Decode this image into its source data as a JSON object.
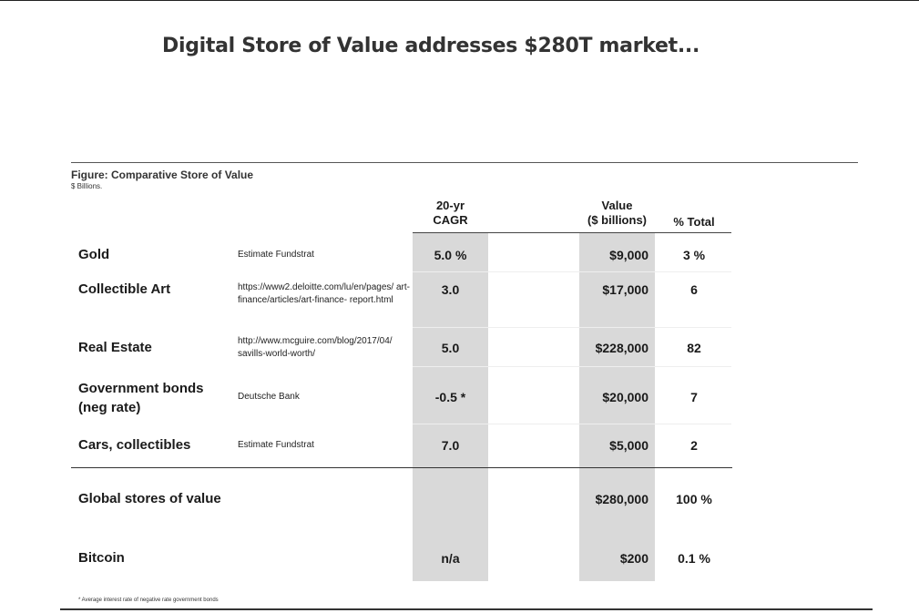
{
  "slide": {
    "title": "Digital Store of Value addresses $280T market..."
  },
  "figure": {
    "title": "Figure: Comparative Store of Value",
    "subtitle": "$ Billions."
  },
  "columns": {
    "cagr_line1": "20-yr",
    "cagr_line2": "CAGR",
    "value_line1": "Value",
    "value_line2": "($ billions)",
    "pct": "% Total"
  },
  "rows": [
    {
      "asset": "Gold",
      "source": "Estimate Fundstrat",
      "cagr": "5.0 %",
      "value": "$9,000",
      "pct": "3 %"
    },
    {
      "asset": "Collectible Art",
      "source": "https://www2.deloitte.com/lu/en/pages/ art-finance/articles/art-finance- report.html",
      "cagr": "3.0",
      "value": "$17,000",
      "pct": "6"
    },
    {
      "asset": "Real Estate",
      "source": "http://www.mcguire.com/blog/2017/04/ savills-world-worth/",
      "cagr": "5.0",
      "value": "$228,000",
      "pct": "82"
    },
    {
      "asset_line1": "Government bonds",
      "asset_line2": "(neg rate)",
      "source": "Deutsche Bank",
      "cagr": "-0.5 *",
      "value": "$20,000",
      "pct": "7"
    },
    {
      "asset": "Cars, collectibles",
      "source": "Estimate Fundstrat",
      "cagr": "7.0",
      "value": "$5,000",
      "pct": "2"
    }
  ],
  "total": {
    "asset": "Global stores of value",
    "value": "$280,000",
    "pct": "100 %"
  },
  "bitcoin": {
    "asset": "Bitcoin",
    "cagr": "n/a",
    "value": "$200",
    "pct": "0.1 %"
  },
  "footnote": "* Average interest rate of negative rate government bonds"
}
